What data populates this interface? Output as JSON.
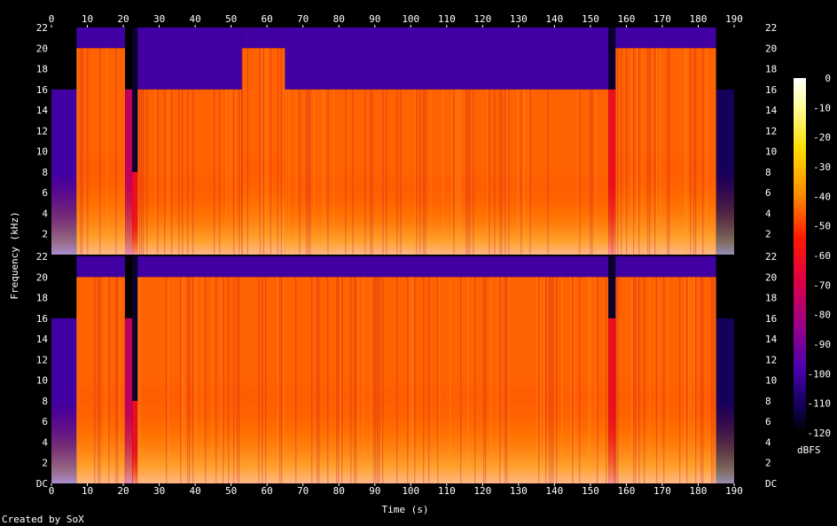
{
  "chart_data": {
    "type": "heatmap",
    "xlabel": "Time (s)",
    "ylabel": "Frequency (kHz)",
    "colorbar_label": "dBFS",
    "credit": "Created by SoX",
    "x_range": [
      0,
      190
    ],
    "x_ticks": [
      0,
      10,
      20,
      30,
      40,
      50,
      60,
      70,
      80,
      90,
      100,
      110,
      120,
      130,
      140,
      150,
      160,
      170,
      180,
      190
    ],
    "y_range": [
      0,
      22
    ],
    "y_ticks": [
      "DC",
      "2",
      "4",
      "6",
      "8",
      "10",
      "12",
      "14",
      "16",
      "18",
      "20",
      "22"
    ],
    "color_range": [
      -120,
      0
    ],
    "color_ticks": [
      0,
      -10,
      -20,
      -30,
      -40,
      -50,
      -60,
      -70,
      -80,
      -90,
      -100,
      -110,
      -120
    ],
    "channels": [
      {
        "segments": [
          {
            "t0": 0,
            "t1": 7,
            "cutoff": 16,
            "level": -100
          },
          {
            "t0": 7,
            "t1": 20.5,
            "cutoff": 20,
            "level": -45
          },
          {
            "t0": 20.5,
            "t1": 22.5,
            "cutoff": 16,
            "level": -75
          },
          {
            "t0": 22.5,
            "t1": 24,
            "cutoff": 8,
            "level": -60
          },
          {
            "t0": 24,
            "t1": 53,
            "cutoff": 16,
            "level": -45
          },
          {
            "t0": 53,
            "t1": 65,
            "cutoff": 20,
            "level": -45
          },
          {
            "t0": 65,
            "t1": 155,
            "cutoff": 16,
            "level": -45
          },
          {
            "t0": 155,
            "t1": 157,
            "cutoff": 16,
            "level": -60
          },
          {
            "t0": 157,
            "t1": 185,
            "cutoff": 20,
            "level": -45
          },
          {
            "t0": 185,
            "t1": 190,
            "cutoff": 16,
            "level": -110
          }
        ]
      },
      {
        "segments": [
          {
            "t0": 0,
            "t1": 7,
            "cutoff": 16,
            "level": -100
          },
          {
            "t0": 7,
            "t1": 20.5,
            "cutoff": 20,
            "level": -45
          },
          {
            "t0": 20.5,
            "t1": 22.5,
            "cutoff": 16,
            "level": -75
          },
          {
            "t0": 22.5,
            "t1": 24,
            "cutoff": 8,
            "level": -60
          },
          {
            "t0": 24,
            "t1": 155,
            "cutoff": 20,
            "level": -45
          },
          {
            "t0": 155,
            "t1": 157,
            "cutoff": 16,
            "level": -60
          },
          {
            "t0": 157,
            "t1": 185,
            "cutoff": 20,
            "level": -45
          },
          {
            "t0": 185,
            "t1": 190,
            "cutoff": 16,
            "level": -110
          }
        ]
      }
    ]
  }
}
